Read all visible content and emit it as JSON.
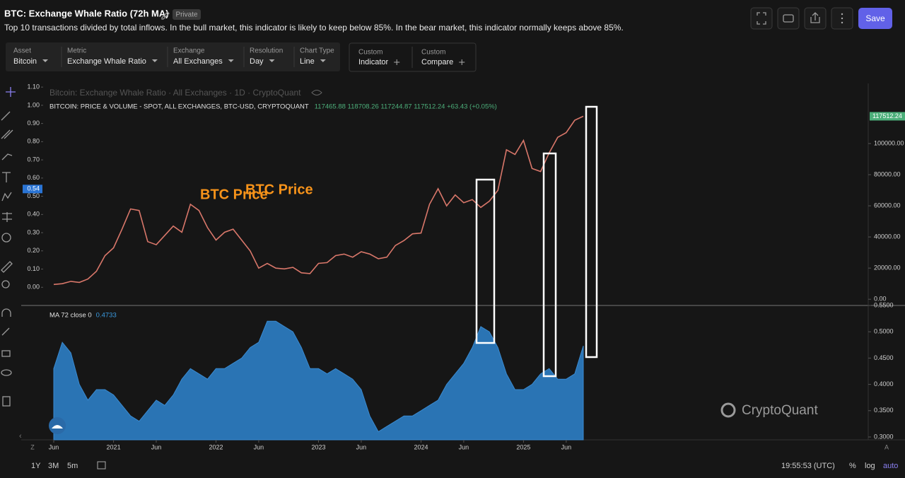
{
  "header": {
    "title": "BTC: Exchange Whale Ratio (72h MA)",
    "badge": "Private",
    "description": "Top 10 transactions divided by total inflows. In the bull market, this indicator is likely to keep below 85%. In the bear market, this indicator normally keeps above 85%.",
    "save": "Save"
  },
  "filters": [
    {
      "label": "Asset",
      "value": "Bitcoin"
    },
    {
      "label": "Metric",
      "value": "Exchange Whale Ratio"
    },
    {
      "label": "Exchange",
      "value": "All Exchanges"
    },
    {
      "label": "Resolution",
      "value": "Day"
    },
    {
      "label": "Chart Type",
      "value": "Line"
    }
  ],
  "custom": [
    {
      "label": "Custom",
      "value": "Indicator"
    },
    {
      "label": "Custom",
      "value": "Compare"
    }
  ],
  "chart_data": [
    {
      "type": "line",
      "title": "Bitcoin: Exchange Whale Ratio · All Exchanges · 1D · CryptoQuant",
      "series": [
        {
          "name": "BITCOIN: PRICE & VOLUME - SPOT, ALL EXCHANGES, BTC-USD, CRYPTOQUANT",
          "ohlc": "117465.88 118708.26 117244.87 117512.24 +63.43 (+0.05%)",
          "color": "#d9776a",
          "values": [
            9500,
            10000,
            11500,
            10800,
            13000,
            18000,
            28000,
            33000,
            45000,
            58000,
            57000,
            37000,
            35000,
            41000,
            47000,
            43000,
            61000,
            57000,
            46000,
            38000,
            43000,
            45000,
            38000,
            31000,
            20000,
            23000,
            20000,
            19500,
            20500,
            17000,
            16500,
            23000,
            23500,
            28000,
            29000,
            27000,
            30500,
            29000,
            26000,
            27000,
            34500,
            37700,
            42000,
            42500,
            61000,
            71000,
            60000,
            67000,
            62000,
            64000,
            59000,
            63000,
            70000,
            96000,
            93000,
            102000,
            84000,
            82000,
            94000,
            104000,
            107000,
            115000,
            117512.24
          ]
        }
      ],
      "ylim": [
        -4000,
        138600
      ],
      "yticks": [
        {
          "value": 0,
          "label": "0.00"
        },
        {
          "value": 20000,
          "label": "20000.00"
        },
        {
          "value": 40000,
          "label": "40000.00"
        },
        {
          "value": 60000,
          "label": "60000.00"
        },
        {
          "value": 80000,
          "label": "80000.00"
        },
        {
          "value": 100000,
          "label": "100000.00"
        }
      ],
      "y2lim": [
        -0.1,
        1.12
      ],
      "y2ticks": [
        {
          "value": 0,
          "label": "0.00"
        },
        {
          "value": 0.1,
          "label": "0.10"
        },
        {
          "value": 0.2,
          "label": "0.20"
        },
        {
          "value": 0.3,
          "label": "0.30"
        },
        {
          "value": 0.4,
          "label": "0.40"
        },
        {
          "value": 0.5,
          "label": "0.50"
        },
        {
          "value": 0.6,
          "label": "0.60"
        },
        {
          "value": 0.7,
          "label": "0.70"
        },
        {
          "value": 0.8,
          "label": "0.80"
        },
        {
          "value": 0.9,
          "label": "0.90"
        },
        {
          "value": 1,
          "label": "1.00"
        },
        {
          "value": 1.1,
          "label": "1.10"
        }
      ],
      "crosshair": 0.54,
      "annotations": [
        "BTC Price",
        "BTC Price"
      ]
    },
    {
      "type": "area",
      "categories": [
        "Jun",
        null,
        null,
        null,
        null,
        null,
        null,
        "2021",
        null,
        null,
        null,
        null,
        "Jun",
        null,
        null,
        null,
        null,
        null,
        null,
        "2022",
        null,
        null,
        null,
        null,
        "Jun",
        null,
        null,
        null,
        null,
        null,
        null,
        "2023",
        null,
        null,
        null,
        null,
        "Jun",
        null,
        null,
        null,
        null,
        null,
        null,
        "2024",
        null,
        null,
        null,
        null,
        "Jun",
        null,
        null,
        null,
        null,
        null,
        null,
        "2025",
        null,
        null,
        null,
        null,
        "Jun",
        null,
        null
      ],
      "series": [
        {
          "name": "MA 72 close 0",
          "color": "#2a74b4",
          "values": [
            0.43,
            0.48,
            0.46,
            0.4,
            0.37,
            0.39,
            0.39,
            0.38,
            0.36,
            0.34,
            0.33,
            0.35,
            0.37,
            0.36,
            0.38,
            0.41,
            0.43,
            0.42,
            0.41,
            0.43,
            0.43,
            0.44,
            0.45,
            0.47,
            0.48,
            0.52,
            0.52,
            0.51,
            0.5,
            0.47,
            0.43,
            0.43,
            0.42,
            0.43,
            0.42,
            0.41,
            0.39,
            0.34,
            0.31,
            0.32,
            0.33,
            0.34,
            0.34,
            0.35,
            0.36,
            0.37,
            0.4,
            0.42,
            0.44,
            0.47,
            0.51,
            0.5,
            0.47,
            0.42,
            0.39,
            0.39,
            0.4,
            0.42,
            0.43,
            0.41,
            0.41,
            0.42,
            0.4733
          ]
        }
      ],
      "ylim": [
        0.2946,
        0.55
      ],
      "yticks": [
        {
          "value": 0.3,
          "label": "0.3000"
        },
        {
          "value": 0.35,
          "label": "0.3500"
        },
        {
          "value": 0.4,
          "label": "0.4000"
        },
        {
          "value": 0.45,
          "label": "0.4500"
        },
        {
          "value": 0.5,
          "label": "0.5000"
        },
        {
          "value": 0.55,
          "label": "0.5500"
        }
      ]
    }
  ],
  "watermark": "CryptoQuant",
  "footer": {
    "ranges": [
      "1Y",
      "3M",
      "5m"
    ],
    "time": "19:55:53 (UTC)",
    "options": [
      "%",
      "log",
      "auto"
    ],
    "corner_left": "Z",
    "corner_right": "A"
  }
}
